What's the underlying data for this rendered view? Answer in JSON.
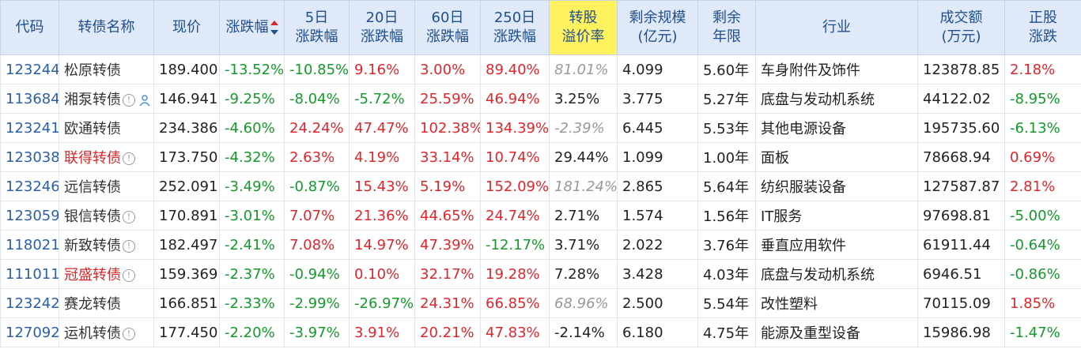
{
  "headers": {
    "code": "代码",
    "name": "转债名称",
    "price": "现价",
    "change": "涨跌幅",
    "d5_1": "5日",
    "d5_2": "涨跌幅",
    "d20_1": "20日",
    "d20_2": "涨跌幅",
    "d60_1": "60日",
    "d60_2": "涨跌幅",
    "d250_1": "250日",
    "d250_2": "涨跌幅",
    "prem_1": "转股",
    "prem_2": "溢价率",
    "scale_1": "剩余规模",
    "scale_2": "(亿元)",
    "years_1": "剩余",
    "years_2": "年限",
    "industry": "行业",
    "vol_1": "成交额",
    "vol_2": "(万元)",
    "stock_1": "正股",
    "stock_2": "涨跌"
  },
  "colors": {
    "up": "#e0262b",
    "down": "#139a2b",
    "header_bg": "#dfe9f7",
    "highlight": "#fff25e"
  },
  "rows": [
    {
      "code": "123244",
      "name": "松原转债",
      "price": "189.400",
      "change": "-13.52%",
      "d5": "-10.85%",
      "d20": "9.16%",
      "d60": "3.00%",
      "d250": "89.40%",
      "premium": "81.01%",
      "scale": "4.099",
      "years": "5.60年",
      "industry": "车身附件及饰件",
      "volume": "123878.85",
      "stock": "2.18%"
    },
    {
      "code": "113684",
      "name": "湘泵转债",
      "price": "146.941",
      "change": "-9.25%",
      "d5": "-8.04%",
      "d20": "-5.72%",
      "d60": "25.59%",
      "d250": "46.94%",
      "premium": "3.25%",
      "scale": "3.775",
      "years": "5.27年",
      "industry": "底盘与发动机系统",
      "volume": "44122.02",
      "stock": "-8.95%"
    },
    {
      "code": "123241",
      "name": "欧通转债",
      "price": "234.386",
      "change": "-4.60%",
      "d5": "24.24%",
      "d20": "47.47%",
      "d60": "102.38%",
      "d250": "134.39%",
      "premium": "-2.39%",
      "scale": "6.445",
      "years": "5.53年",
      "industry": "其他电源设备",
      "volume": "195735.60",
      "stock": "-6.13%"
    },
    {
      "code": "123038",
      "name": "联得转债",
      "price": "173.750",
      "change": "-4.32%",
      "d5": "2.63%",
      "d20": "4.19%",
      "d60": "33.14%",
      "d250": "10.74%",
      "premium": "29.44%",
      "scale": "1.099",
      "years": "1.00年",
      "industry": "面板",
      "volume": "78668.94",
      "stock": "0.69%"
    },
    {
      "code": "123246",
      "name": "远信转债",
      "price": "252.091",
      "change": "-3.49%",
      "d5": "-0.87%",
      "d20": "15.43%",
      "d60": "5.19%",
      "d250": "152.09%",
      "premium": "181.24%",
      "scale": "2.865",
      "years": "5.64年",
      "industry": "纺织服装设备",
      "volume": "127587.87",
      "stock": "2.81%"
    },
    {
      "code": "123059",
      "name": "银信转债",
      "price": "170.891",
      "change": "-3.01%",
      "d5": "7.07%",
      "d20": "21.36%",
      "d60": "44.65%",
      "d250": "24.74%",
      "premium": "2.71%",
      "scale": "1.574",
      "years": "1.56年",
      "industry": "IT服务",
      "volume": "97698.81",
      "stock": "-5.00%"
    },
    {
      "code": "118021",
      "name": "新致转债",
      "price": "182.497",
      "change": "-2.41%",
      "d5": "7.08%",
      "d20": "14.97%",
      "d60": "47.39%",
      "d250": "-12.17%",
      "premium": "3.71%",
      "scale": "2.022",
      "years": "3.76年",
      "industry": "垂直应用软件",
      "volume": "61911.44",
      "stock": "-0.64%"
    },
    {
      "code": "111011",
      "name": "冠盛转债",
      "price": "159.369",
      "change": "-2.37%",
      "d5": "-0.94%",
      "d20": "0.10%",
      "d60": "32.17%",
      "d250": "19.28%",
      "premium": "7.28%",
      "scale": "3.428",
      "years": "4.03年",
      "industry": "底盘与发动机系统",
      "volume": "6946.51",
      "stock": "-0.86%"
    },
    {
      "code": "123242",
      "name": "赛龙转债",
      "price": "166.851",
      "change": "-2.33%",
      "d5": "-2.99%",
      "d20": "-26.97%",
      "d60": "24.31%",
      "d250": "66.85%",
      "premium": "68.96%",
      "scale": "2.500",
      "years": "5.54年",
      "industry": "改性塑料",
      "volume": "70115.09",
      "stock": "1.85%"
    },
    {
      "code": "127092",
      "name": "运机转债",
      "price": "177.450",
      "change": "-2.20%",
      "d5": "-3.97%",
      "d20": "3.91%",
      "d60": "20.21%",
      "d250": "47.83%",
      "premium": "-2.14%",
      "scale": "6.180",
      "years": "4.75年",
      "industry": "能源及重型设备",
      "volume": "15986.98",
      "stock": "-1.47%"
    }
  ]
}
